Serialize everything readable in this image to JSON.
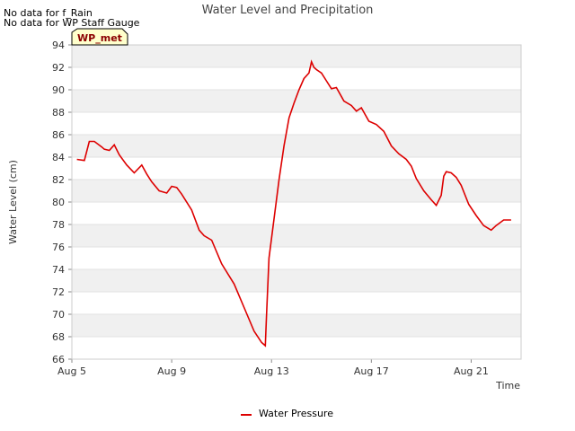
{
  "notices": [
    "No data for f_Rain",
    "No data for WP Staff Gauge"
  ],
  "badge": "WP_met",
  "colors": {
    "series": "#dd0000",
    "band": "#f0f0f0",
    "badge_fill": "#ffffcc"
  },
  "chart_data": {
    "type": "line",
    "title": "Water Level and Precipitation",
    "xlabel": "Time",
    "ylabel": "Water Level (cm)",
    "xlim": [
      "Aug 5",
      "Aug 23"
    ],
    "ylim": [
      66,
      94
    ],
    "yticks": [
      66,
      68,
      70,
      72,
      74,
      76,
      78,
      80,
      82,
      84,
      86,
      88,
      90,
      92,
      94
    ],
    "xticks": [
      {
        "label": "Aug 5",
        "day": 5
      },
      {
        "label": "Aug 9",
        "day": 9
      },
      {
        "label": "Aug 13",
        "day": 13
      },
      {
        "label": "Aug 17",
        "day": 17
      },
      {
        "label": "Aug 21",
        "day": 21
      }
    ],
    "grid": true,
    "legend_position": "bottom",
    "series": [
      {
        "name": "Water Pressure",
        "x": [
          5.2,
          5.5,
          5.7,
          5.9,
          6.2,
          6.3,
          6.5,
          6.7,
          6.9,
          7.2,
          7.5,
          7.8,
          8.0,
          8.2,
          8.5,
          8.8,
          9.0,
          9.2,
          9.4,
          9.8,
          10.1,
          10.3,
          10.6,
          11.0,
          11.5,
          11.9,
          12.3,
          12.6,
          12.75,
          12.8,
          12.9,
          13.1,
          13.3,
          13.5,
          13.7,
          13.9,
          14.1,
          14.3,
          14.5,
          14.6,
          14.7,
          14.8,
          15.0,
          15.2,
          15.4,
          15.6,
          15.9,
          16.2,
          16.4,
          16.6,
          16.9,
          17.2,
          17.5,
          17.8,
          18.1,
          18.4,
          18.6,
          18.8,
          19.1,
          19.4,
          19.6,
          19.8,
          19.9,
          20.0,
          20.2,
          20.4,
          20.6,
          20.9,
          21.2,
          21.5,
          21.8,
          22.0,
          22.3,
          22.6
        ],
        "y": [
          83.8,
          83.7,
          85.4,
          85.4,
          84.9,
          84.7,
          84.6,
          85.1,
          84.2,
          83.3,
          82.6,
          83.3,
          82.5,
          81.8,
          81.0,
          80.8,
          81.4,
          81.3,
          80.7,
          79.3,
          77.5,
          77.0,
          76.6,
          74.5,
          72.7,
          70.6,
          68.5,
          67.5,
          67.2,
          70.0,
          75.0,
          78.5,
          82.0,
          85.0,
          87.5,
          88.8,
          90.0,
          91.0,
          91.5,
          92.5,
          92.0,
          91.8,
          91.5,
          90.8,
          90.1,
          90.2,
          89.0,
          88.6,
          88.1,
          88.4,
          87.2,
          86.9,
          86.3,
          85.0,
          84.3,
          83.8,
          83.2,
          82.1,
          81.0,
          80.2,
          79.7,
          80.6,
          82.3,
          82.7,
          82.6,
          82.2,
          81.5,
          79.8,
          78.8,
          77.9,
          77.5,
          77.9,
          78.4,
          78.4
        ]
      }
    ]
  }
}
